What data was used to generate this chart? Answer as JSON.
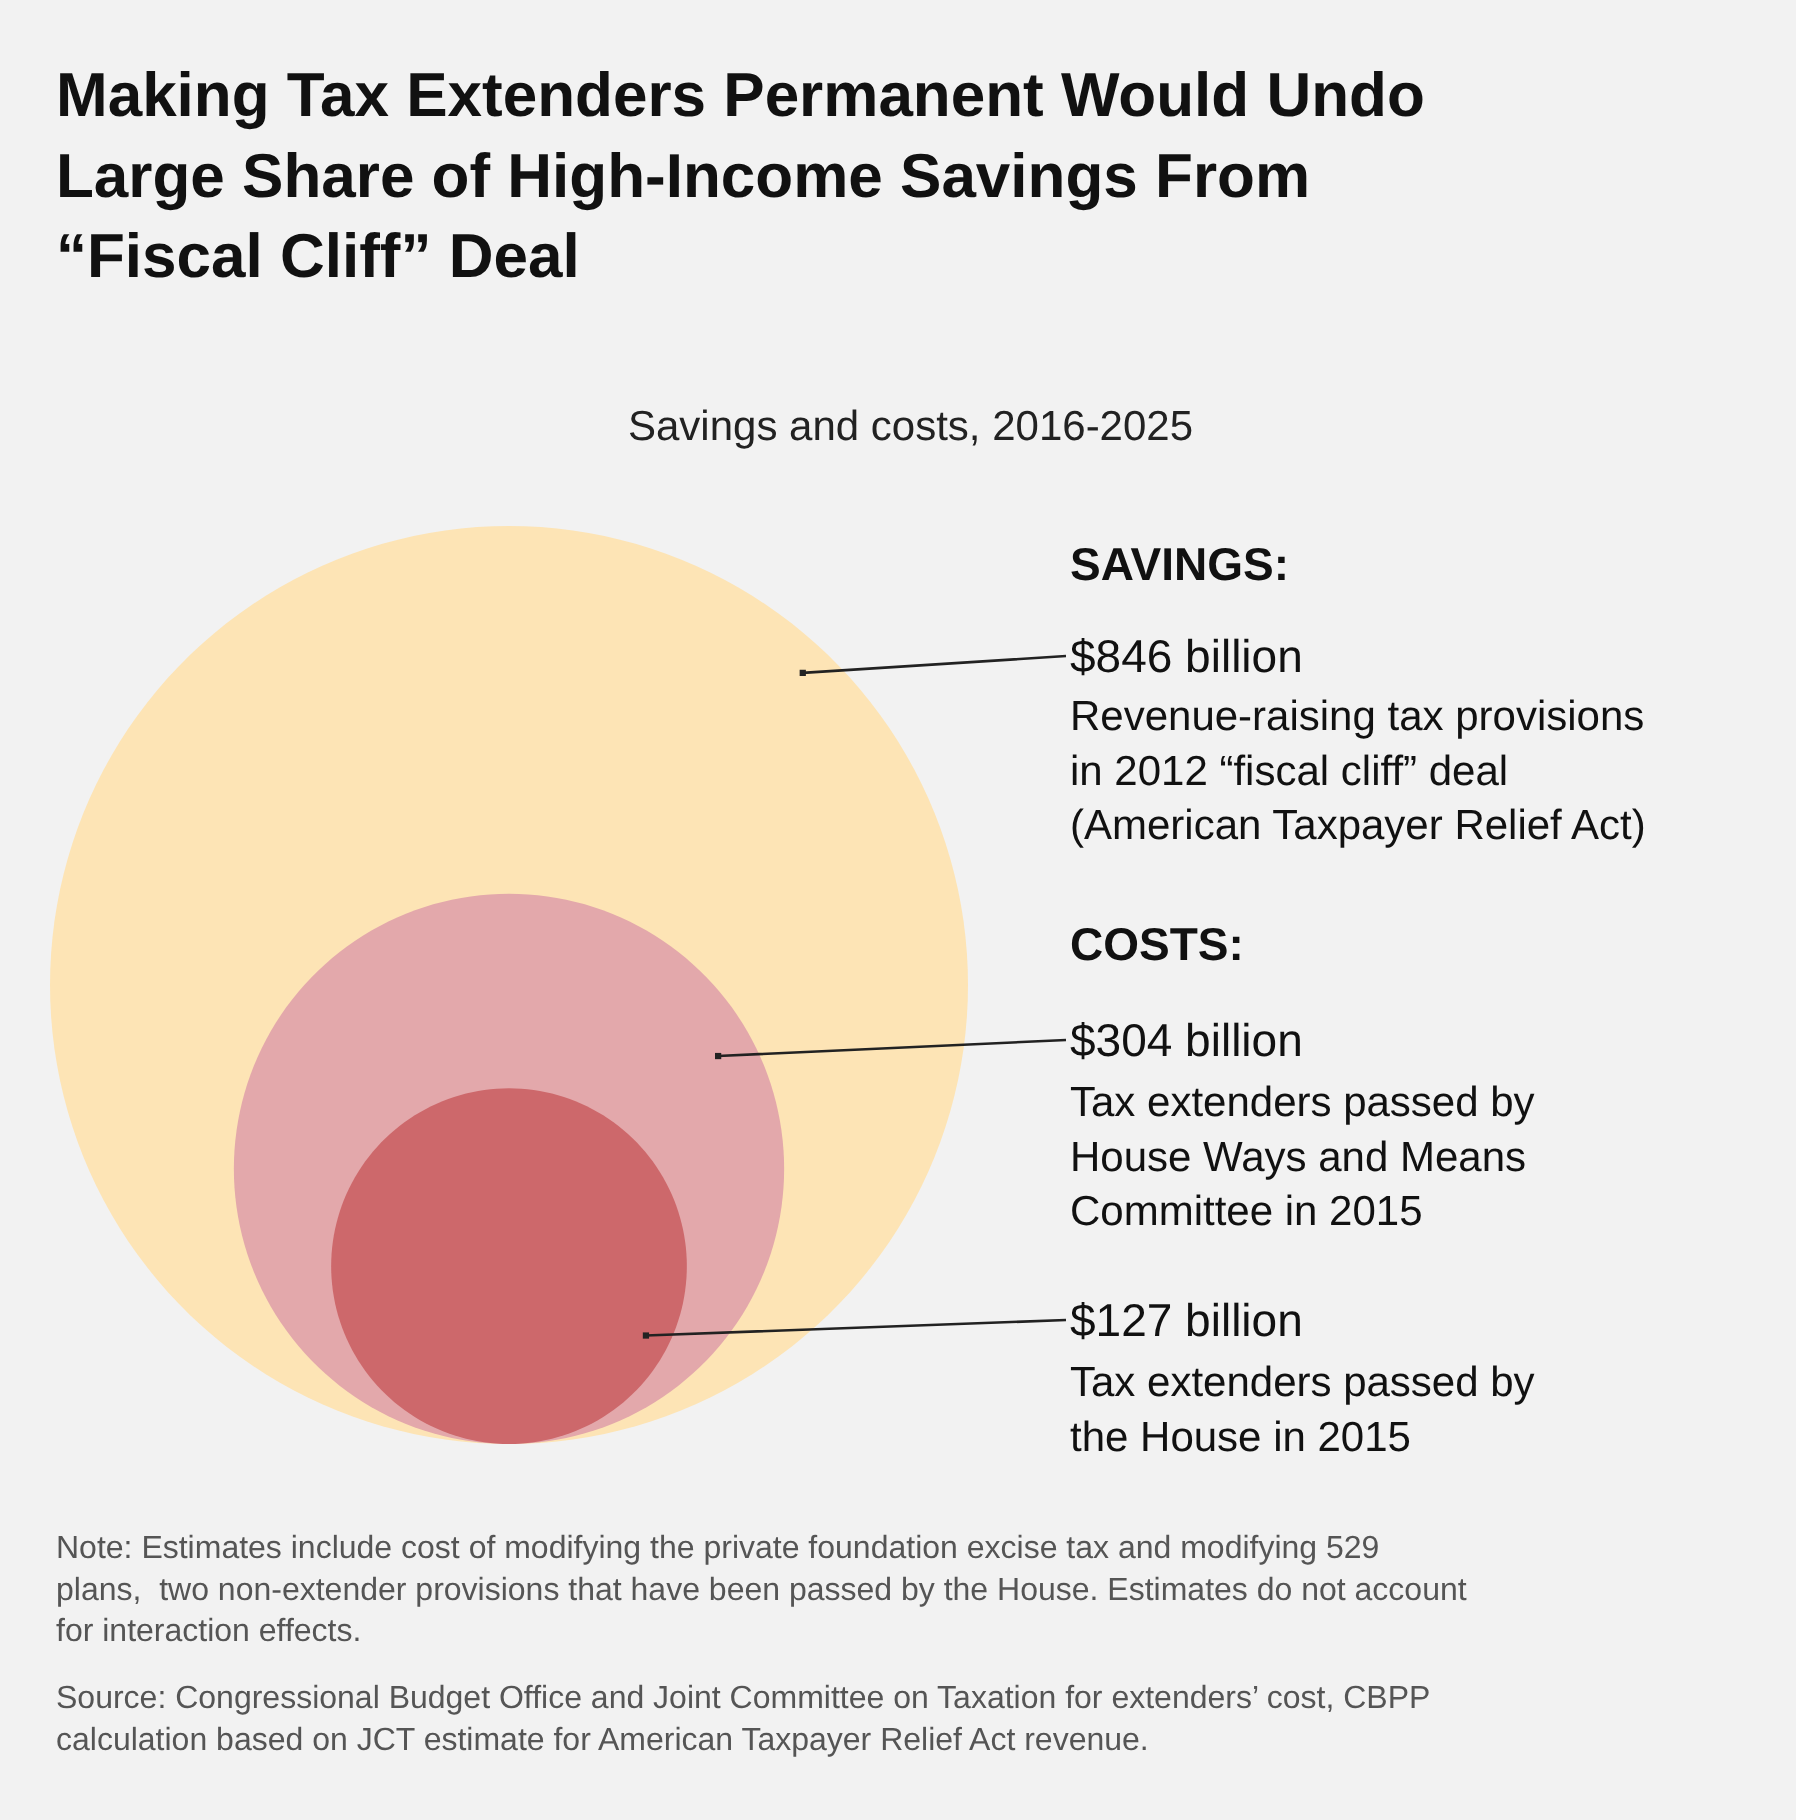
{
  "chart_data": {
    "type": "other",
    "title": "Making Tax Extenders Permanent Would Undo Large Share of High-Income Savings From “Fiscal Cliff” Deal",
    "subtitle": "Savings and costs, 2016-2025",
    "categories": [
      "Revenue-raising tax provisions in 2012 “fiscal cliff” deal (American Taxpayer Relief Act)",
      "Tax extenders passed by House Ways and Means Committee in 2015",
      "Tax extenders passed by the House in 2015"
    ],
    "values": [
      846,
      304,
      127
    ],
    "value_labels": [
      "$846 billion",
      "$304 billion",
      "$127 billion"
    ],
    "colors": [
      "#fde4b5",
      "#e3a8ab",
      "#cd686b"
    ],
    "annotations": [
      "SAVINGS:",
      "COSTS:",
      "Note: Estimates include cost of modifying the private foundation excise tax and modifying 529 plans,  two non-extender provisions that have been passed by the House. Estimates do not account for interaction effects.",
      "Source: Congressional Budget Office and Joint Committee on Taxation for extenders’ cost, CBPP calculation based on JCT estimate for American Taxpayer Relief Act revenue."
    ]
  }
}
